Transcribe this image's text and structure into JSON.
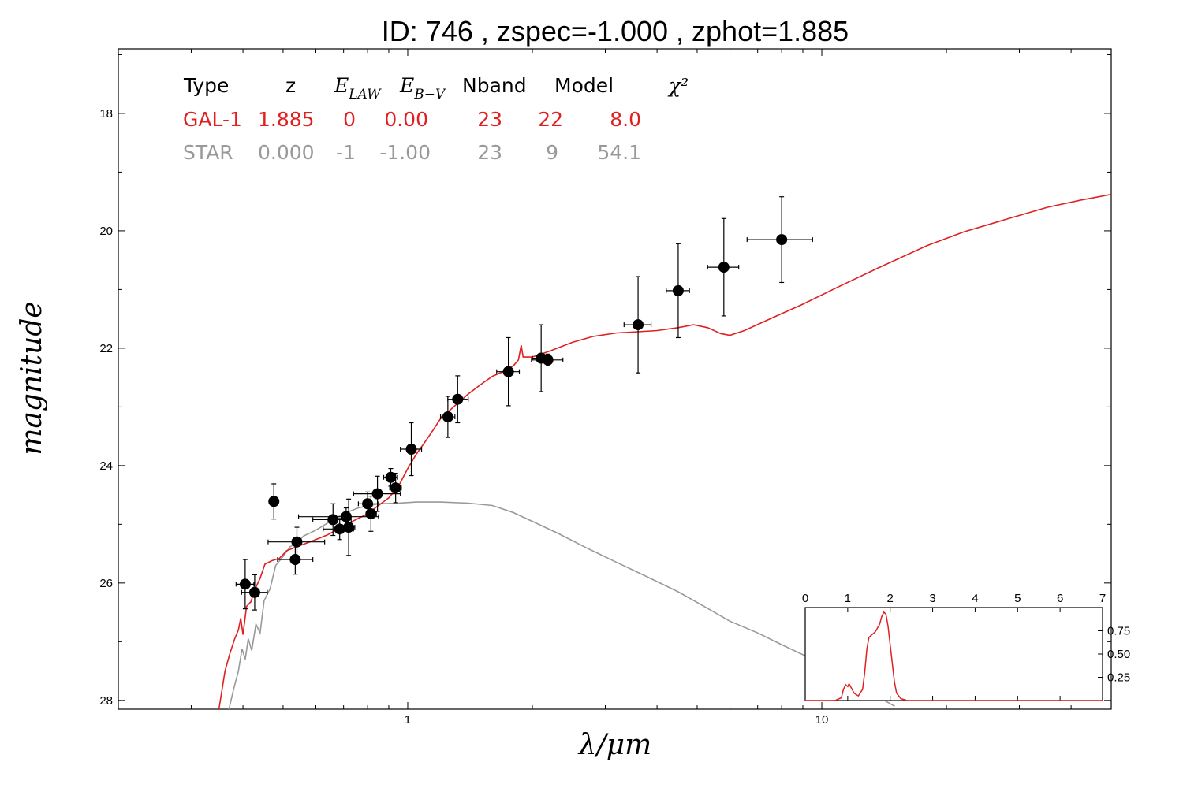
{
  "chart_data": {
    "type": "scatter",
    "title": "ID:  746   , zspec=-1.000 , zphot=1.885",
    "xlabel": "λ/μm",
    "ylabel": "magnitude",
    "xscale": "log",
    "xlim": [
      0.2,
      50
    ],
    "ylim": [
      28.15,
      16.9
    ],
    "y_inverted": true,
    "x_tick_labels": [
      {
        "value": 1,
        "label": "1"
      },
      {
        "value": 10,
        "label": "10"
      }
    ],
    "y_tick_labels": [
      {
        "value": 18,
        "label": "18"
      },
      {
        "value": 20,
        "label": "20"
      },
      {
        "value": 22,
        "label": "22"
      },
      {
        "value": 24,
        "label": "24"
      },
      {
        "value": 26,
        "label": "26"
      },
      {
        "value": 28,
        "label": "28"
      }
    ],
    "colors": {
      "gal": "#e02020",
      "star": "#999999",
      "points": "#000000"
    },
    "fit_table": {
      "headers": [
        "Type",
        "z",
        "E_LAW",
        "E_B-V",
        "Nband",
        "Model",
        "χ²"
      ],
      "rows": [
        {
          "name": "gal",
          "cells": [
            "GAL-1",
            "1.885",
            "0",
            "0.00",
            "23",
            "22",
            "8.0"
          ]
        },
        {
          "name": "star",
          "cells": [
            "STAR",
            "0.000",
            "-1",
            "-1.00",
            "23",
            "9",
            "54.1"
          ]
        }
      ]
    },
    "points": [
      {
        "x": 0.405,
        "y": 26.02,
        "xerr": [
          0.385,
          0.425
        ],
        "yerr": 0.42
      },
      {
        "x": 0.427,
        "y": 26.16,
        "xerr": [
          0.397,
          0.458
        ],
        "yerr": 0.3
      },
      {
        "x": 0.475,
        "y": 24.61,
        "xerr": [
          0.468,
          0.482
        ],
        "yerr": 0.3
      },
      {
        "x": 0.535,
        "y": 25.6,
        "xerr": [
          0.485,
          0.59
        ],
        "yerr": 0.25
      },
      {
        "x": 0.54,
        "y": 25.3,
        "xerr": [
          0.46,
          0.63
        ],
        "yerr": 0.25
      },
      {
        "x": 0.66,
        "y": 24.92,
        "xerr": [
          0.59,
          0.73
        ],
        "yerr": 0.27
      },
      {
        "x": 0.685,
        "y": 25.08,
        "xerr": [
          0.625,
          0.74
        ],
        "yerr": 0.18
      },
      {
        "x": 0.71,
        "y": 24.87,
        "xerr": [
          0.545,
          0.85
        ],
        "yerr": 0.15
      },
      {
        "x": 0.72,
        "y": 25.05,
        "xerr": [
          0.695,
          0.745
        ],
        "yerr": 0.48
      },
      {
        "x": 0.8,
        "y": 24.65,
        "xerr": [
          0.76,
          0.85
        ],
        "yerr": 0.2
      },
      {
        "x": 0.815,
        "y": 24.82,
        "xerr": [
          0.795,
          0.84
        ],
        "yerr": 0.3
      },
      {
        "x": 0.845,
        "y": 24.48,
        "xerr": [
          0.74,
          0.96
        ],
        "yerr": 0.3
      },
      {
        "x": 0.91,
        "y": 24.2,
        "xerr": [
          0.875,
          0.945
        ],
        "yerr": 0.15
      },
      {
        "x": 0.935,
        "y": 24.38,
        "xerr": [
          0.905,
          0.965
        ],
        "yerr": 0.25
      },
      {
        "x": 1.02,
        "y": 23.72,
        "xerr": [
          0.96,
          1.08
        ],
        "yerr": 0.45
      },
      {
        "x": 1.25,
        "y": 23.17,
        "xerr": [
          1.2,
          1.3
        ],
        "yerr": 0.35
      },
      {
        "x": 1.32,
        "y": 22.87,
        "xerr": [
          1.25,
          1.4
        ],
        "yerr": 0.4
      },
      {
        "x": 1.75,
        "y": 22.4,
        "xerr": [
          1.64,
          1.86
        ],
        "yerr": 0.58
      },
      {
        "x": 2.1,
        "y": 22.17,
        "xerr": [
          2.0,
          2.2
        ],
        "yerr": 0.57
      },
      {
        "x": 2.18,
        "y": 22.2,
        "xerr": [
          1.99,
          2.37
        ],
        "yerr": 0.1
      },
      {
        "x": 3.6,
        "y": 21.6,
        "xerr": [
          3.33,
          3.87
        ],
        "yerr": 0.82
      },
      {
        "x": 4.5,
        "y": 21.02,
        "xerr": [
          4.21,
          4.79
        ],
        "yerr": 0.8
      },
      {
        "x": 5.8,
        "y": 20.62,
        "xerr": [
          5.3,
          6.3
        ],
        "yerr": 0.83
      },
      {
        "x": 8.0,
        "y": 20.15,
        "xerr": [
          6.6,
          9.5
        ],
        "yerr": 0.73
      }
    ],
    "gal_model": [
      [
        0.35,
        28.2
      ],
      [
        0.362,
        27.5
      ],
      [
        0.372,
        27.2
      ],
      [
        0.382,
        26.95
      ],
      [
        0.39,
        26.8
      ],
      [
        0.395,
        26.6
      ],
      [
        0.4,
        26.88
      ],
      [
        0.408,
        26.4
      ],
      [
        0.418,
        26.32
      ],
      [
        0.428,
        26.1
      ],
      [
        0.44,
        25.92
      ],
      [
        0.452,
        25.68
      ],
      [
        0.47,
        25.62
      ],
      [
        0.49,
        25.58
      ],
      [
        0.51,
        25.45
      ],
      [
        0.54,
        25.38
      ],
      [
        0.57,
        25.32
      ],
      [
        0.6,
        25.26
      ],
      [
        0.64,
        25.18
      ],
      [
        0.68,
        25.08
      ],
      [
        0.72,
        24.98
      ],
      [
        0.76,
        24.9
      ],
      [
        0.8,
        24.82
      ],
      [
        0.85,
        24.68
      ],
      [
        0.9,
        24.55
      ],
      [
        0.95,
        24.35
      ],
      [
        1.0,
        24.05
      ],
      [
        1.05,
        23.8
      ],
      [
        1.1,
        23.6
      ],
      [
        1.15,
        23.4
      ],
      [
        1.2,
        23.2
      ],
      [
        1.3,
        22.98
      ],
      [
        1.4,
        22.78
      ],
      [
        1.5,
        22.62
      ],
      [
        1.6,
        22.48
      ],
      [
        1.7,
        22.4
      ],
      [
        1.8,
        22.3
      ],
      [
        1.85,
        22.2
      ],
      [
        1.88,
        21.95
      ],
      [
        1.9,
        22.15
      ],
      [
        2.0,
        22.15
      ],
      [
        2.2,
        22.05
      ],
      [
        2.5,
        21.9
      ],
      [
        2.8,
        21.8
      ],
      [
        3.2,
        21.74
      ],
      [
        3.6,
        21.72
      ],
      [
        4.0,
        21.7
      ],
      [
        4.5,
        21.65
      ],
      [
        4.9,
        21.6
      ],
      [
        5.3,
        21.65
      ],
      [
        5.7,
        21.75
      ],
      [
        6.0,
        21.78
      ],
      [
        6.5,
        21.7
      ],
      [
        7.5,
        21.5
      ],
      [
        9.0,
        21.25
      ],
      [
        11.0,
        20.95
      ],
      [
        14.0,
        20.6
      ],
      [
        18.0,
        20.25
      ],
      [
        22.0,
        20.02
      ],
      [
        28.0,
        19.8
      ],
      [
        35.0,
        19.6
      ],
      [
        42.0,
        19.48
      ],
      [
        50.0,
        19.38
      ]
    ],
    "star_model": [
      [
        0.37,
        28.2
      ],
      [
        0.38,
        27.8
      ],
      [
        0.39,
        27.5
      ],
      [
        0.398,
        27.12
      ],
      [
        0.405,
        27.3
      ],
      [
        0.412,
        26.95
      ],
      [
        0.42,
        27.15
      ],
      [
        0.43,
        26.7
      ],
      [
        0.44,
        26.85
      ],
      [
        0.45,
        26.3
      ],
      [
        0.465,
        26.1
      ],
      [
        0.48,
        25.7
      ],
      [
        0.5,
        25.55
      ],
      [
        0.52,
        25.38
      ],
      [
        0.54,
        25.32
      ],
      [
        0.56,
        25.2
      ],
      [
        0.6,
        25.1
      ],
      [
        0.65,
        24.95
      ],
      [
        0.7,
        24.82
      ],
      [
        0.76,
        24.72
      ],
      [
        0.85,
        24.65
      ],
      [
        0.95,
        24.64
      ],
      [
        1.05,
        24.62
      ],
      [
        1.2,
        24.62
      ],
      [
        1.4,
        24.64
      ],
      [
        1.6,
        24.68
      ],
      [
        1.8,
        24.8
      ],
      [
        2.0,
        24.95
      ],
      [
        2.3,
        25.15
      ],
      [
        2.7,
        25.4
      ],
      [
        3.2,
        25.65
      ],
      [
        3.8,
        25.9
      ],
      [
        4.5,
        26.15
      ],
      [
        5.2,
        26.4
      ],
      [
        6.0,
        26.65
      ],
      [
        7.0,
        26.85
      ],
      [
        8.0,
        27.05
      ],
      [
        9.5,
        27.3
      ],
      [
        11.0,
        27.55
      ],
      [
        13.0,
        27.85
      ],
      [
        15.0,
        28.1
      ]
    ],
    "inset": {
      "type": "line",
      "xlim": [
        0,
        7
      ],
      "ylim": [
        0,
        1.0
      ],
      "x_tick_labels": [
        "0",
        "1",
        "2",
        "3",
        "4",
        "5",
        "6",
        "7"
      ],
      "y_tick_labels": [
        {
          "value": 0.25,
          "label": "0.25"
        },
        {
          "value": 0.5,
          "label": "0.50"
        },
        {
          "value": 0.75,
          "label": "0.75"
        }
      ],
      "pdf": [
        [
          0.0,
          0.0
        ],
        [
          0.7,
          0.0
        ],
        [
          0.85,
          0.03
        ],
        [
          0.9,
          0.12
        ],
        [
          0.95,
          0.17
        ],
        [
          1.0,
          0.15
        ],
        [
          1.03,
          0.18
        ],
        [
          1.08,
          0.14
        ],
        [
          1.15,
          0.08
        ],
        [
          1.25,
          0.05
        ],
        [
          1.35,
          0.12
        ],
        [
          1.4,
          0.3
        ],
        [
          1.45,
          0.55
        ],
        [
          1.5,
          0.68
        ],
        [
          1.55,
          0.7
        ],
        [
          1.6,
          0.72
        ],
        [
          1.65,
          0.74
        ],
        [
          1.7,
          0.78
        ],
        [
          1.75,
          0.82
        ],
        [
          1.8,
          0.9
        ],
        [
          1.85,
          0.95
        ],
        [
          1.9,
          0.93
        ],
        [
          1.95,
          0.8
        ],
        [
          2.0,
          0.6
        ],
        [
          2.05,
          0.4
        ],
        [
          2.1,
          0.2
        ],
        [
          2.15,
          0.08
        ],
        [
          2.25,
          0.02
        ],
        [
          2.4,
          0.0
        ],
        [
          7.0,
          0.0
        ]
      ]
    }
  }
}
